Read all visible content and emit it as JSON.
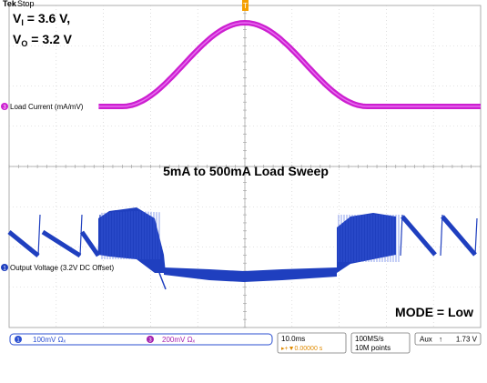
{
  "scope": {
    "brand": "Tek",
    "run_state": "Stop",
    "trigger_marker": "T"
  },
  "annotations": {
    "vi_label": "V",
    "vi_sub": "I",
    "vi_value": " = 3.6 V,",
    "vo_label": "V",
    "vo_sub": "O",
    "vo_value": " = 3.2 V",
    "sweep_label": "5mA to 500mA Load Sweep",
    "mode_label": "MODE = Low"
  },
  "channels": [
    {
      "id": "1",
      "label": "Output Voltage (3.2V DC Offset)",
      "scale": "100mV Ωₓ",
      "color": "#1f3fbf"
    },
    {
      "id": "3",
      "label": "Load Current (mA/mV)",
      "scale": "200mV Ωₓ",
      "color": "#cc1fd0"
    }
  ],
  "status": {
    "timebase": "10.0ms",
    "trigger_delay": "▸+▼0.00000 s",
    "sample_rate": "100MS/s",
    "record_length": "10M points",
    "trigger_source": "Aux",
    "trigger_slope": "↑",
    "trigger_level": "1.73 V"
  },
  "chart_data": {
    "type": "line",
    "title": "5mA to 500mA Load Sweep",
    "xlabel": "",
    "ylabel": "",
    "x_divisions": 10,
    "y_divisions": 8,
    "grid": true,
    "series": [
      {
        "name": "Load Current (mA/mV)",
        "unit": "mA",
        "x_div": [
          0,
          1,
          2,
          2.5,
          3,
          3.5,
          4,
          4.5,
          5,
          5.5,
          6,
          6.5,
          7,
          7.5,
          8,
          9,
          10
        ],
        "values": [
          5,
          5,
          5,
          15,
          60,
          150,
          280,
          420,
          495,
          420,
          280,
          150,
          60,
          15,
          5,
          5,
          5
        ]
      },
      {
        "name": "Output Voltage (3.2V DC Offset)",
        "unit": "mV",
        "note_segments": [
          "sawtooth",
          "dense switching",
          "flat",
          "dense switching",
          "sawtooth"
        ]
      }
    ]
  }
}
